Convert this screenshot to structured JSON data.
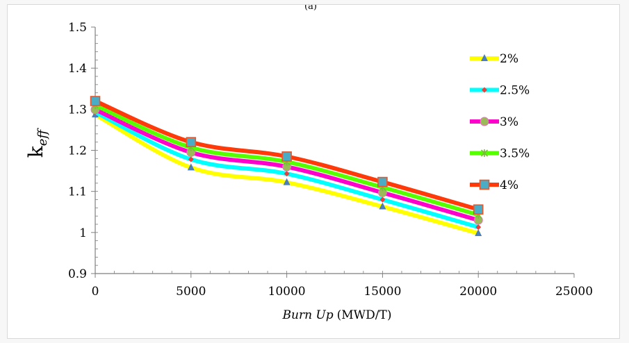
{
  "panel_caption": "(a)",
  "chart_data": {
    "type": "line",
    "title": "",
    "xlabel_italic": "Burn Up",
    "xlabel_unit": "(MWD/T)",
    "ylabel_main": "k",
    "ylabel_sub": "eff",
    "xlim": [
      0,
      25000
    ],
    "ylim": [
      0.9,
      1.5
    ],
    "xticks": [
      "0",
      "5000",
      "10000",
      "15000",
      "20000",
      "25000"
    ],
    "yticks": [
      "0.9",
      "1",
      "1.1",
      "1.2",
      "1.3",
      "1.4",
      "1.5"
    ],
    "grid": false,
    "legend_position": "right",
    "x": [
      0,
      5000,
      10000,
      15000,
      20000
    ],
    "series": [
      {
        "name": "2%",
        "values": [
          1.287,
          1.158,
          1.122,
          1.063,
          0.998
        ],
        "line_color": "#ffff00",
        "marker": "triangle",
        "marker_color": "#4a7ebb"
      },
      {
        "name": "2.5%",
        "values": [
          1.293,
          1.178,
          1.143,
          1.08,
          1.013
        ],
        "line_color": "#00ffff",
        "marker": "diamond",
        "marker_color": "#e8403a"
      },
      {
        "name": "3%",
        "values": [
          1.299,
          1.195,
          1.16,
          1.097,
          1.03
        ],
        "line_color": "#ff00cc",
        "marker": "circle",
        "marker_color": "#9bbb59"
      },
      {
        "name": "3.5%",
        "values": [
          1.31,
          1.207,
          1.172,
          1.11,
          1.043
        ],
        "line_color": "#55ff00",
        "marker": "star",
        "marker_color": "#7cba3d"
      },
      {
        "name": "4%",
        "values": [
          1.32,
          1.22,
          1.185,
          1.123,
          1.056
        ],
        "line_color": "#ff3a0a",
        "marker": "square",
        "marker_color": "#4bacc6"
      }
    ]
  }
}
